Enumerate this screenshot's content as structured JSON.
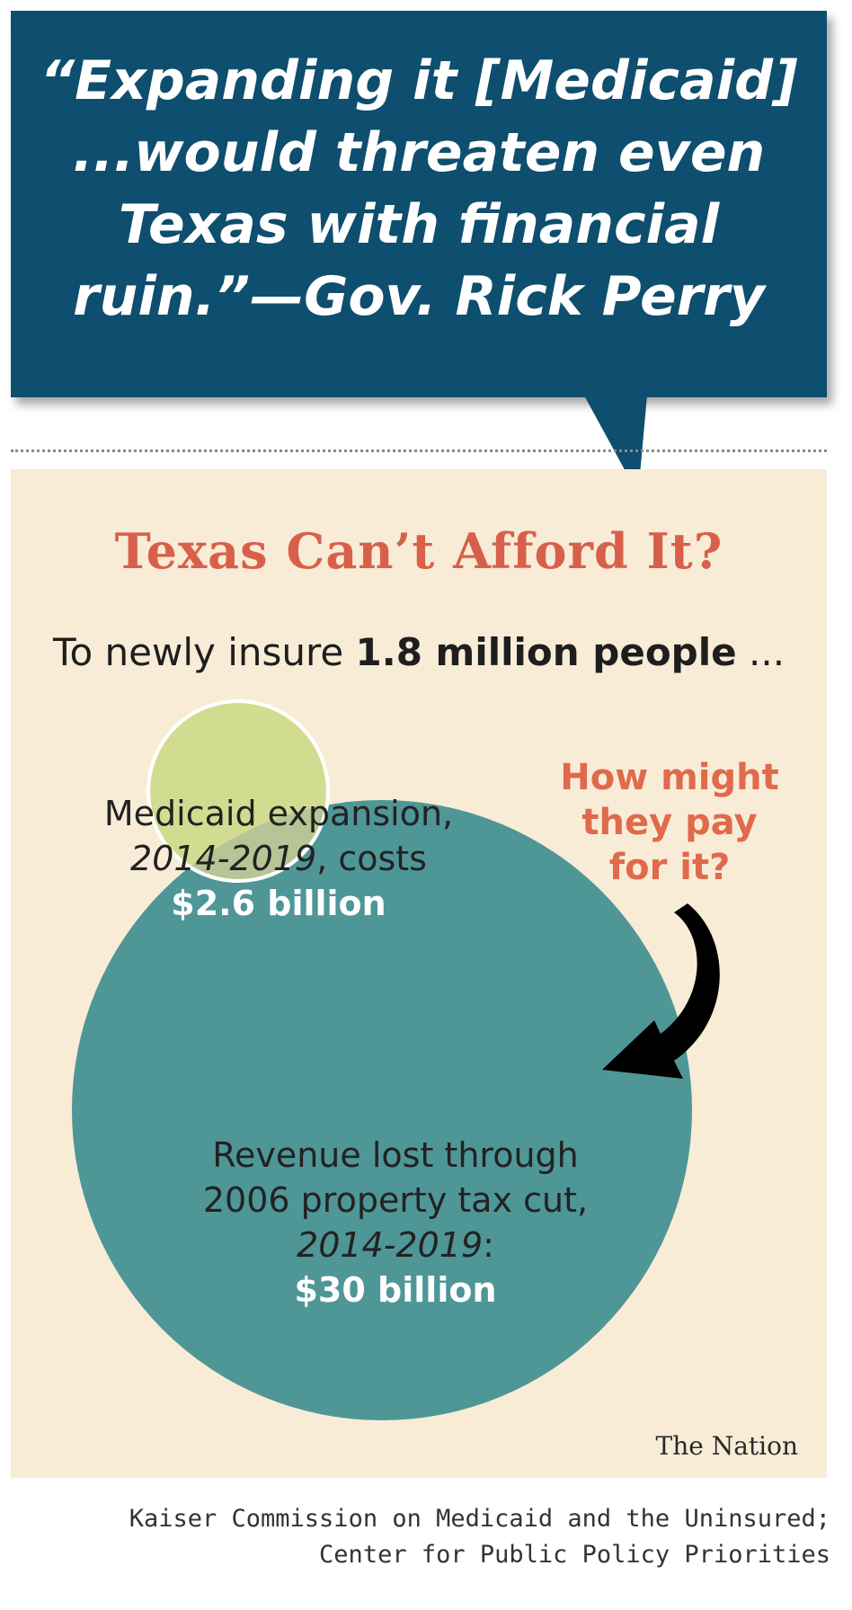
{
  "colors": {
    "quote_bg": "#0e4e6e",
    "panel_bg": "#f8ecd6",
    "headline": "#d8604a",
    "small_circle": "#d2dc90",
    "big_circle": "#4f9697"
  },
  "quote": {
    "lines": [
      "“Expanding it [Medicaid]",
      "...would threaten even",
      "Texas with financial",
      "ruin.”—Gov. Rick Perry"
    ]
  },
  "headline": "Texas Can’t Afford It?",
  "subline": {
    "prefix": "To newly insure ",
    "bold": "1.8 million people",
    "suffix": " ..."
  },
  "medicaid": {
    "line1": "Medicaid expansion,",
    "period": "2014-2019",
    "after_period": ", costs",
    "amount": "$2.6 billion",
    "value_billion": 2.6
  },
  "revenue": {
    "line1": "Revenue lost through",
    "line2": "2006 property tax cut,",
    "period": "2014-2019",
    "after_period": ":",
    "amount": "$30 billion",
    "value_billion": 30
  },
  "question": {
    "lines": [
      "How might",
      "they pay",
      "for it?"
    ]
  },
  "brand": "The Nation",
  "source": {
    "lines": [
      "Kaiser Commission on Medicaid and the Uninsured;",
      "Center for Public Policy Priorities"
    ]
  }
}
